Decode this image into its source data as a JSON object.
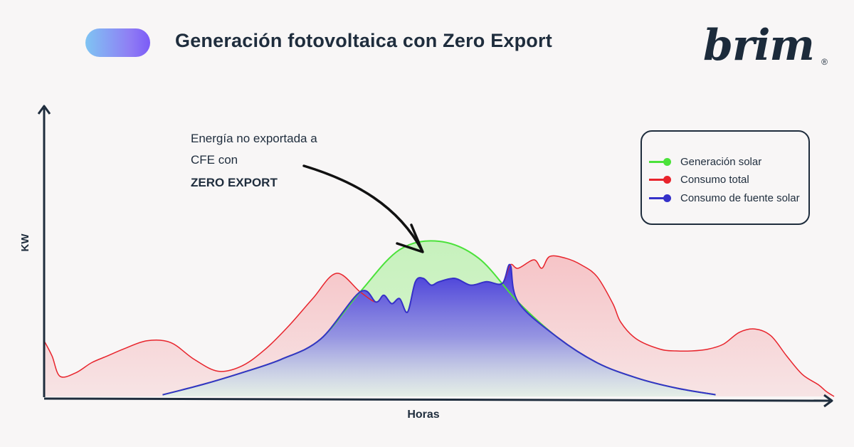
{
  "header": {
    "title": "Generación fotovoltaica con Zero Export",
    "logo_text": "brim",
    "logo_mark": "®"
  },
  "annotation": {
    "line1": "Energía no exportada a",
    "line2": "CFE con",
    "line3": "ZERO EXPORT"
  },
  "colors": {
    "generation": "#4be23a",
    "consumption": "#e8242c",
    "solar_consumption": "#3531c9",
    "axis": "#1f2d3d"
  },
  "chart_data": {
    "type": "area",
    "title": "",
    "xlabel": "Horas",
    "ylabel": "KW",
    "grid": false,
    "legend_position": "top-right",
    "x_range": [
      0,
      100
    ],
    "y_range": [
      0,
      100
    ],
    "series": [
      {
        "name": "Generación solar",
        "color": "#4be23a",
        "x": [
          15,
          20,
          25,
          30,
          35,
          40,
          45,
          50,
          55,
          60,
          65,
          70,
          75,
          80,
          85
        ],
        "values": [
          1,
          7,
          14,
          22,
          34,
          62,
          87,
          92,
          82,
          56,
          35,
          20,
          11,
          5,
          1
        ]
      },
      {
        "name": "Consumo total",
        "color": "#e8242c",
        "x": [
          0,
          1,
          2,
          4,
          6,
          8,
          10,
          13,
          16,
          19,
          22,
          25,
          28,
          31,
          34,
          37,
          40,
          42,
          43,
          44,
          45,
          46,
          47,
          48,
          49,
          50,
          52,
          54,
          56,
          58,
          59,
          60,
          62,
          63,
          64,
          66,
          68,
          70,
          72,
          73,
          75,
          78,
          80,
          82,
          84,
          86,
          88,
          90,
          92,
          94,
          96,
          98,
          99,
          100
        ],
        "values": [
          33,
          24,
          12,
          14,
          20,
          24,
          28,
          33,
          32,
          22,
          15,
          18,
          28,
          42,
          58,
          73,
          62,
          56,
          60,
          55,
          58,
          50,
          68,
          70,
          66,
          68,
          70,
          66,
          68,
          67,
          78,
          76,
          81,
          76,
          83,
          82,
          78,
          71,
          55,
          44,
          34,
          28,
          27,
          27,
          28,
          31,
          38,
          40,
          36,
          24,
          13,
          7,
          3,
          0
        ]
      },
      {
        "name": "Consumo de fuente solar",
        "color": "#3531c9",
        "x": [
          15,
          20,
          25,
          30,
          35,
          40,
          42,
          43,
          44,
          45,
          46,
          47,
          48,
          49,
          50,
          52,
          54,
          56,
          58,
          59,
          60,
          65,
          70,
          75,
          80,
          85
        ],
        "values": [
          1,
          7,
          14,
          22,
          34,
          62,
          56,
          60,
          55,
          58,
          50,
          68,
          70,
          66,
          68,
          70,
          66,
          68,
          67,
          78,
          56,
          35,
          20,
          11,
          5,
          1
        ]
      }
    ]
  }
}
